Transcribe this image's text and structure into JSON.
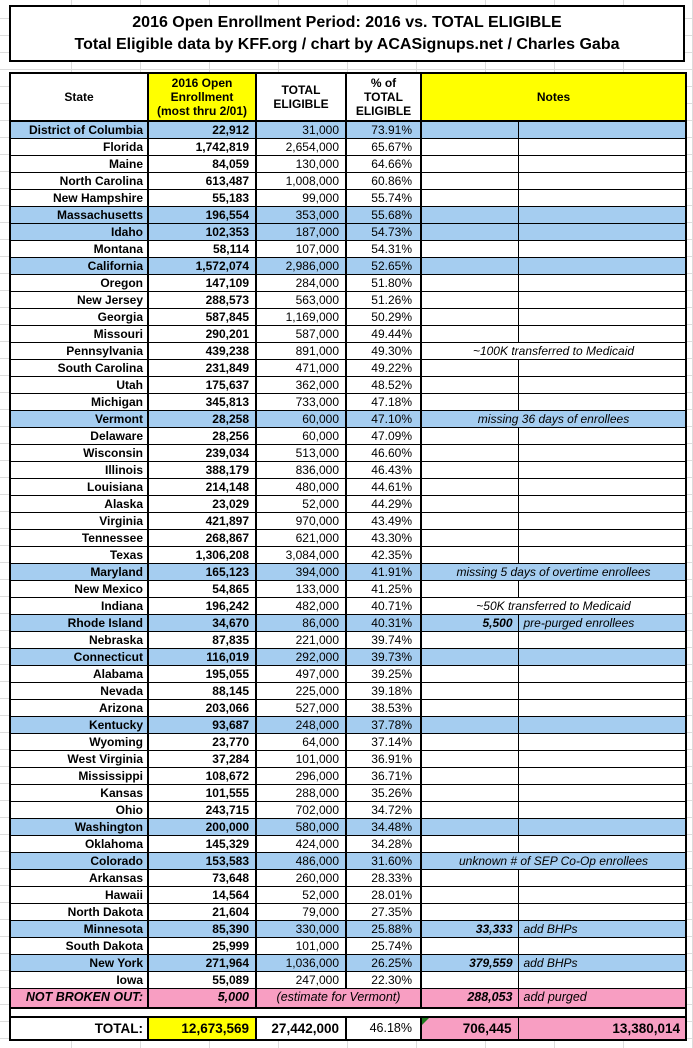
{
  "title": {
    "line1": "2016 Open Enrollment Period: 2016 vs. TOTAL ELIGIBLE",
    "line2": "Total Eligible data by KFF.org / chart by ACASignups.net / Charles Gaba"
  },
  "colors": {
    "highlight_blue": "#A5CDF0",
    "header_yellow": "#FFFF00",
    "pink": "#F89EC2",
    "total_yellow": "#FFFF00",
    "error_triangle_green": "#1F7A1F",
    "border_black": "#000000",
    "margin_gridline_gray": "#DCDCDC"
  },
  "header": {
    "state": "State",
    "enrollment": "2016 Open\nEnrollment\n(most thru 2/01)",
    "eligible": "TOTAL\nELIGIBLE",
    "pct": "% of\nTOTAL\nELIGIBLE",
    "notes": "Notes"
  },
  "chart_data": {
    "type": "table",
    "columns": [
      "State",
      "2016 Open Enrollment (most thru 2/01)",
      "TOTAL ELIGIBLE",
      "% of TOTAL ELIGIBLE",
      "Notes"
    ],
    "legend_hint": "blue rows = highlighted states; notes column may contain a number plus text",
    "rows": [
      {
        "state": "District of Columbia",
        "enrolled": "22,912",
        "eligible": "31,000",
        "pct": "73.91%",
        "highlighted": true,
        "note_num": "",
        "note": ""
      },
      {
        "state": "Florida",
        "enrolled": "1,742,819",
        "eligible": "2,654,000",
        "pct": "65.67%",
        "highlighted": false,
        "note_num": "",
        "note": ""
      },
      {
        "state": "Maine",
        "enrolled": "84,059",
        "eligible": "130,000",
        "pct": "64.66%",
        "highlighted": false,
        "note_num": "",
        "note": ""
      },
      {
        "state": "North Carolina",
        "enrolled": "613,487",
        "eligible": "1,008,000",
        "pct": "60.86%",
        "highlighted": false,
        "note_num": "",
        "note": ""
      },
      {
        "state": "New Hampshire",
        "enrolled": "55,183",
        "eligible": "99,000",
        "pct": "55.74%",
        "highlighted": false,
        "note_num": "",
        "note": ""
      },
      {
        "state": "Massachusetts",
        "enrolled": "196,554",
        "eligible": "353,000",
        "pct": "55.68%",
        "highlighted": true,
        "note_num": "",
        "note": ""
      },
      {
        "state": "Idaho",
        "enrolled": "102,353",
        "eligible": "187,000",
        "pct": "54.73%",
        "highlighted": true,
        "note_num": "",
        "note": ""
      },
      {
        "state": "Montana",
        "enrolled": "58,114",
        "eligible": "107,000",
        "pct": "54.31%",
        "highlighted": false,
        "note_num": "",
        "note": ""
      },
      {
        "state": "California",
        "enrolled": "1,572,074",
        "eligible": "2,986,000",
        "pct": "52.65%",
        "highlighted": true,
        "note_num": "",
        "note": ""
      },
      {
        "state": "Oregon",
        "enrolled": "147,109",
        "eligible": "284,000",
        "pct": "51.80%",
        "highlighted": false,
        "note_num": "",
        "note": ""
      },
      {
        "state": "New Jersey",
        "enrolled": "288,573",
        "eligible": "563,000",
        "pct": "51.26%",
        "highlighted": false,
        "note_num": "",
        "note": ""
      },
      {
        "state": "Georgia",
        "enrolled": "587,845",
        "eligible": "1,169,000",
        "pct": "50.29%",
        "highlighted": false,
        "note_num": "",
        "note": ""
      },
      {
        "state": "Missouri",
        "enrolled": "290,201",
        "eligible": "587,000",
        "pct": "49.44%",
        "highlighted": false,
        "note_num": "",
        "note": ""
      },
      {
        "state": "Pennsylvania",
        "enrolled": "439,238",
        "eligible": "891,000",
        "pct": "49.30%",
        "highlighted": false,
        "note_num": "",
        "note": "~100K transferred to Medicaid",
        "note_span": true
      },
      {
        "state": "South Carolina",
        "enrolled": "231,849",
        "eligible": "471,000",
        "pct": "49.22%",
        "highlighted": false,
        "note_num": "",
        "note": ""
      },
      {
        "state": "Utah",
        "enrolled": "175,637",
        "eligible": "362,000",
        "pct": "48.52%",
        "highlighted": false,
        "note_num": "",
        "note": ""
      },
      {
        "state": "Michigan",
        "enrolled": "345,813",
        "eligible": "733,000",
        "pct": "47.18%",
        "highlighted": false,
        "note_num": "",
        "note": ""
      },
      {
        "state": "Vermont",
        "enrolled": "28,258",
        "eligible": "60,000",
        "pct": "47.10%",
        "highlighted": true,
        "note_num": "",
        "note": "missing 36 days of enrollees",
        "note_span": true
      },
      {
        "state": "Delaware",
        "enrolled": "28,256",
        "eligible": "60,000",
        "pct": "47.09%",
        "highlighted": false,
        "note_num": "",
        "note": ""
      },
      {
        "state": "Wisconsin",
        "enrolled": "239,034",
        "eligible": "513,000",
        "pct": "46.60%",
        "highlighted": false,
        "note_num": "",
        "note": ""
      },
      {
        "state": "Illinois",
        "enrolled": "388,179",
        "eligible": "836,000",
        "pct": "46.43%",
        "highlighted": false,
        "note_num": "",
        "note": ""
      },
      {
        "state": "Louisiana",
        "enrolled": "214,148",
        "eligible": "480,000",
        "pct": "44.61%",
        "highlighted": false,
        "note_num": "",
        "note": ""
      },
      {
        "state": "Alaska",
        "enrolled": "23,029",
        "eligible": "52,000",
        "pct": "44.29%",
        "highlighted": false,
        "note_num": "",
        "note": ""
      },
      {
        "state": "Virginia",
        "enrolled": "421,897",
        "eligible": "970,000",
        "pct": "43.49%",
        "highlighted": false,
        "note_num": "",
        "note": ""
      },
      {
        "state": "Tennessee",
        "enrolled": "268,867",
        "eligible": "621,000",
        "pct": "43.30%",
        "highlighted": false,
        "note_num": "",
        "note": ""
      },
      {
        "state": "Texas",
        "enrolled": "1,306,208",
        "eligible": "3,084,000",
        "pct": "42.35%",
        "highlighted": false,
        "note_num": "",
        "note": ""
      },
      {
        "state": "Maryland",
        "enrolled": "165,123",
        "eligible": "394,000",
        "pct": "41.91%",
        "highlighted": true,
        "note_num": "",
        "note": "missing 5 days of overtime enrollees",
        "note_span": true
      },
      {
        "state": "New Mexico",
        "enrolled": "54,865",
        "eligible": "133,000",
        "pct": "41.25%",
        "highlighted": false,
        "note_num": "",
        "note": ""
      },
      {
        "state": "Indiana",
        "enrolled": "196,242",
        "eligible": "482,000",
        "pct": "40.71%",
        "highlighted": false,
        "note_num": "",
        "note": "~50K transferred to Medicaid",
        "note_span": true
      },
      {
        "state": "Rhode Island",
        "enrolled": "34,670",
        "eligible": "86,000",
        "pct": "40.31%",
        "highlighted": true,
        "note_num": "5,500",
        "note": "pre-purged enrollees"
      },
      {
        "state": "Nebraska",
        "enrolled": "87,835",
        "eligible": "221,000",
        "pct": "39.74%",
        "highlighted": false,
        "note_num": "",
        "note": ""
      },
      {
        "state": "Connecticut",
        "enrolled": "116,019",
        "eligible": "292,000",
        "pct": "39.73%",
        "highlighted": true,
        "note_num": "",
        "note": ""
      },
      {
        "state": "Alabama",
        "enrolled": "195,055",
        "eligible": "497,000",
        "pct": "39.25%",
        "highlighted": false,
        "note_num": "",
        "note": ""
      },
      {
        "state": "Nevada",
        "enrolled": "88,145",
        "eligible": "225,000",
        "pct": "39.18%",
        "highlighted": false,
        "note_num": "",
        "note": ""
      },
      {
        "state": "Arizona",
        "enrolled": "203,066",
        "eligible": "527,000",
        "pct": "38.53%",
        "highlighted": false,
        "note_num": "",
        "note": ""
      },
      {
        "state": "Kentucky",
        "enrolled": "93,687",
        "eligible": "248,000",
        "pct": "37.78%",
        "highlighted": true,
        "note_num": "",
        "note": ""
      },
      {
        "state": "Wyoming",
        "enrolled": "23,770",
        "eligible": "64,000",
        "pct": "37.14%",
        "highlighted": false,
        "note_num": "",
        "note": ""
      },
      {
        "state": "West Virginia",
        "enrolled": "37,284",
        "eligible": "101,000",
        "pct": "36.91%",
        "highlighted": false,
        "note_num": "",
        "note": ""
      },
      {
        "state": "Mississippi",
        "enrolled": "108,672",
        "eligible": "296,000",
        "pct": "36.71%",
        "highlighted": false,
        "note_num": "",
        "note": ""
      },
      {
        "state": "Kansas",
        "enrolled": "101,555",
        "eligible": "288,000",
        "pct": "35.26%",
        "highlighted": false,
        "note_num": "",
        "note": ""
      },
      {
        "state": "Ohio",
        "enrolled": "243,715",
        "eligible": "702,000",
        "pct": "34.72%",
        "highlighted": false,
        "note_num": "",
        "note": ""
      },
      {
        "state": "Washington",
        "enrolled": "200,000",
        "eligible": "580,000",
        "pct": "34.48%",
        "highlighted": true,
        "note_num": "",
        "note": ""
      },
      {
        "state": "Oklahoma",
        "enrolled": "145,329",
        "eligible": "424,000",
        "pct": "34.28%",
        "highlighted": false,
        "note_num": "",
        "note": ""
      },
      {
        "state": "Colorado",
        "enrolled": "153,583",
        "eligible": "486,000",
        "pct": "31.60%",
        "highlighted": true,
        "note_num": "",
        "note": "unknown # of SEP Co-Op enrollees",
        "note_span": true
      },
      {
        "state": "Arkansas",
        "enrolled": "73,648",
        "eligible": "260,000",
        "pct": "28.33%",
        "highlighted": false,
        "note_num": "",
        "note": ""
      },
      {
        "state": "Hawaii",
        "enrolled": "14,564",
        "eligible": "52,000",
        "pct": "28.01%",
        "highlighted": false,
        "note_num": "",
        "note": ""
      },
      {
        "state": "North Dakota",
        "enrolled": "21,604",
        "eligible": "79,000",
        "pct": "27.35%",
        "highlighted": false,
        "note_num": "",
        "note": ""
      },
      {
        "state": "Minnesota",
        "enrolled": "85,390",
        "eligible": "330,000",
        "pct": "25.88%",
        "highlighted": true,
        "note_num": "33,333",
        "note": "add BHPs"
      },
      {
        "state": "South Dakota",
        "enrolled": "25,999",
        "eligible": "101,000",
        "pct": "25.74%",
        "highlighted": false,
        "note_num": "",
        "note": ""
      },
      {
        "state": "New York",
        "enrolled": "271,964",
        "eligible": "1,036,000",
        "pct": "26.25%",
        "highlighted": true,
        "note_num": "379,559",
        "note": "add BHPs"
      },
      {
        "state": "Iowa",
        "enrolled": "55,089",
        "eligible": "247,000",
        "pct": "22.30%",
        "highlighted": false,
        "note_num": "",
        "note": ""
      }
    ],
    "not_broken_out": {
      "label": "NOT BROKEN OUT:",
      "enrolled": "5,000",
      "mid_note": "(estimate for Vermont)",
      "note_num": "288,053",
      "note": "add purged"
    },
    "total": {
      "label": "TOTAL:",
      "enrolled": "12,673,569",
      "eligible": "27,442,000",
      "pct": "46.18%",
      "note_num": "706,445",
      "note_value": "13,380,014"
    }
  }
}
